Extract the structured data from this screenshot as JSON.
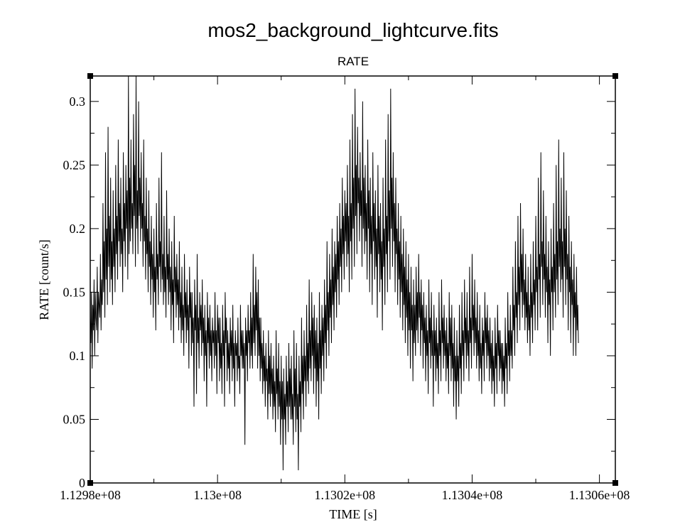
{
  "chart_data": {
    "type": "line",
    "title": "mos2_background_lightcurve.fits",
    "subtitle": "RATE",
    "xlabel": "TIME [s]",
    "ylabel": "RATE [count/s]",
    "xlim": [
      112980000,
      113062500
    ],
    "ylim": [
      0,
      0.32
    ],
    "x_ticks": [
      112980000,
      113000000,
      113020000,
      113040000,
      113060000
    ],
    "x_tick_labels": [
      "1.1298e+08",
      "1.13e+08",
      "1.1302e+08",
      "1.1304e+08",
      "1.1306e+08"
    ],
    "y_ticks": [
      0,
      0.05,
      0.1,
      0.15,
      0.2,
      0.25,
      0.3
    ],
    "y_tick_labels": [
      "0",
      "0.05",
      "0.1",
      "0.15",
      "0.2",
      "0.25",
      "0.3"
    ],
    "grid": false,
    "legend": "none",
    "line_color": "#000000",
    "series": [
      {
        "x_start": 112980000,
        "x_step": 100,
        "values": [
          0.13,
          0.11,
          0.15,
          0.09,
          0.14,
          0.12,
          0.16,
          0.1,
          0.15,
          0.13,
          0.12,
          0.17,
          0.11,
          0.15,
          0.14,
          0.13,
          0.18,
          0.12,
          0.16,
          0.14,
          0.22,
          0.15,
          0.19,
          0.13,
          0.26,
          0.16,
          0.2,
          0.14,
          0.28,
          0.17,
          0.21,
          0.15,
          0.24,
          0.16,
          0.19,
          0.14,
          0.23,
          0.17,
          0.2,
          0.15,
          0.25,
          0.18,
          0.21,
          0.16,
          0.27,
          0.19,
          0.22,
          0.17,
          0.24,
          0.18,
          0.2,
          0.15,
          0.26,
          0.19,
          0.22,
          0.17,
          0.25,
          0.2,
          0.23,
          0.16,
          0.32,
          0.18,
          0.24,
          0.19,
          0.27,
          0.2,
          0.22,
          0.18,
          0.29,
          0.21,
          0.25,
          0.17,
          0.32,
          0.2,
          0.23,
          0.18,
          0.3,
          0.21,
          0.24,
          0.19,
          0.26,
          0.2,
          0.22,
          0.17,
          0.27,
          0.19,
          0.21,
          0.16,
          0.24,
          0.18,
          0.2,
          0.15,
          0.23,
          0.17,
          0.19,
          0.14,
          0.21,
          0.16,
          0.18,
          0.13,
          0.2,
          0.15,
          0.17,
          0.12,
          0.22,
          0.16,
          0.18,
          0.14,
          0.24,
          0.17,
          0.19,
          0.15,
          0.26,
          0.16,
          0.18,
          0.14,
          0.21,
          0.15,
          0.17,
          0.13,
          0.23,
          0.16,
          0.18,
          0.14,
          0.2,
          0.15,
          0.17,
          0.12,
          0.19,
          0.14,
          0.16,
          0.11,
          0.21,
          0.15,
          0.17,
          0.13,
          0.18,
          0.14,
          0.16,
          0.12,
          0.19,
          0.13,
          0.15,
          0.11,
          0.17,
          0.12,
          0.14,
          0.1,
          0.18,
          0.13,
          0.15,
          0.11,
          0.16,
          0.12,
          0.14,
          0.09,
          0.17,
          0.13,
          0.15,
          0.1,
          0.15,
          0.11,
          0.13,
          0.06,
          0.16,
          0.12,
          0.14,
          0.07,
          0.18,
          0.11,
          0.13,
          0.09,
          0.15,
          0.12,
          0.14,
          0.1,
          0.16,
          0.11,
          0.13,
          0.08,
          0.14,
          0.1,
          0.12,
          0.06,
          0.15,
          0.11,
          0.13,
          0.09,
          0.14,
          0.1,
          0.12,
          0.08,
          0.13,
          0.11,
          0.12,
          0.09,
          0.15,
          0.1,
          0.12,
          0.07,
          0.14,
          0.11,
          0.13,
          0.08,
          0.13,
          0.09,
          0.11,
          0.07,
          0.14,
          0.1,
          0.12,
          0.06,
          0.15,
          0.11,
          0.13,
          0.08,
          0.12,
          0.09,
          0.11,
          0.07,
          0.13,
          0.1,
          0.12,
          0.08,
          0.14,
          0.09,
          0.11,
          0.06,
          0.12,
          0.1,
          0.11,
          0.08,
          0.13,
          0.09,
          0.1,
          0.07,
          0.14,
          0.1,
          0.12,
          0.09,
          0.12,
          0.09,
          0.11,
          0.03,
          0.13,
          0.1,
          0.12,
          0.08,
          0.14,
          0.11,
          0.12,
          0.09,
          0.15,
          0.1,
          0.13,
          0.09,
          0.18,
          0.11,
          0.14,
          0.1,
          0.17,
          0.12,
          0.15,
          0.09,
          0.16,
          0.1,
          0.13,
          0.08,
          0.13,
          0.09,
          0.11,
          0.07,
          0.12,
          0.08,
          0.1,
          0.06,
          0.11,
          0.08,
          0.09,
          0.05,
          0.12,
          0.07,
          0.1,
          0.06,
          0.11,
          0.07,
          0.09,
          0.05,
          0.1,
          0.06,
          0.08,
          0.04,
          0.12,
          0.07,
          0.09,
          0.05,
          0.11,
          0.06,
          0.08,
          0.03,
          0.1,
          0.05,
          0.08,
          0.01,
          0.09,
          0.05,
          0.07,
          0.03,
          0.1,
          0.06,
          0.08,
          0.04,
          0.11,
          0.06,
          0.09,
          0.05,
          0.1,
          0.05,
          0.07,
          0.03,
          0.12,
          0.06,
          0.09,
          0.04,
          0.11,
          0.05,
          0.07,
          0.01,
          0.1,
          0.06,
          0.08,
          0.04,
          0.13,
          0.07,
          0.1,
          0.05,
          0.12,
          0.08,
          0.1,
          0.06,
          0.14,
          0.08,
          0.11,
          0.07,
          0.16,
          0.09,
          0.12,
          0.08,
          0.15,
          0.1,
          0.13,
          0.07,
          0.14,
          0.09,
          0.12,
          0.06,
          0.13,
          0.08,
          0.11,
          0.05,
          0.15,
          0.09,
          0.12,
          0.07,
          0.14,
          0.1,
          0.13,
          0.08,
          0.16,
          0.11,
          0.14,
          0.09,
          0.19,
          0.12,
          0.15,
          0.1,
          0.18,
          0.13,
          0.16,
          0.11,
          0.2,
          0.14,
          0.17,
          0.12,
          0.19,
          0.15,
          0.18,
          0.13,
          0.21,
          0.16,
          0.19,
          0.14,
          0.22,
          0.17,
          0.2,
          0.15,
          0.24,
          0.18,
          0.21,
          0.16,
          0.23,
          0.19,
          0.22,
          0.17,
          0.25,
          0.18,
          0.21,
          0.15,
          0.27,
          0.19,
          0.22,
          0.16,
          0.29,
          0.2,
          0.24,
          0.17,
          0.31,
          0.21,
          0.25,
          0.18,
          0.28,
          0.22,
          0.24,
          0.19,
          0.26,
          0.21,
          0.23,
          0.17,
          0.3,
          0.2,
          0.24,
          0.18,
          0.25,
          0.19,
          0.22,
          0.16,
          0.27,
          0.2,
          0.23,
          0.15,
          0.24,
          0.18,
          0.21,
          0.14,
          0.26,
          0.19,
          0.22,
          0.16,
          0.23,
          0.17,
          0.2,
          0.13,
          0.25,
          0.18,
          0.21,
          0.15,
          0.22,
          0.16,
          0.19,
          0.12,
          0.24,
          0.17,
          0.2,
          0.14,
          0.27,
          0.18,
          0.21,
          0.15,
          0.29,
          0.19,
          0.23,
          0.16,
          0.31,
          0.2,
          0.24,
          0.17,
          0.26,
          0.19,
          0.22,
          0.15,
          0.24,
          0.18,
          0.2,
          0.14,
          0.22,
          0.16,
          0.19,
          0.13,
          0.21,
          0.15,
          0.18,
          0.12,
          0.2,
          0.14,
          0.17,
          0.11,
          0.19,
          0.13,
          0.16,
          0.1,
          0.18,
          0.12,
          0.15,
          0.09,
          0.17,
          0.12,
          0.14,
          0.08,
          0.16,
          0.11,
          0.14,
          0.1,
          0.17,
          0.12,
          0.15,
          0.11,
          0.18,
          0.13,
          0.15,
          0.1,
          0.16,
          0.12,
          0.14,
          0.09,
          0.15,
          0.11,
          0.13,
          0.08,
          0.14,
          0.1,
          0.12,
          0.07,
          0.16,
          0.11,
          0.13,
          0.09,
          0.15,
          0.1,
          0.12,
          0.06,
          0.14,
          0.1,
          0.12,
          0.08,
          0.13,
          0.09,
          0.11,
          0.07,
          0.15,
          0.1,
          0.12,
          0.08,
          0.16,
          0.11,
          0.13,
          0.09,
          0.14,
          0.1,
          0.12,
          0.08,
          0.13,
          0.09,
          0.11,
          0.07,
          0.15,
          0.1,
          0.13,
          0.08,
          0.14,
          0.09,
          0.11,
          0.06,
          0.13,
          0.08,
          0.1,
          0.05,
          0.12,
          0.08,
          0.1,
          0.06,
          0.14,
          0.09,
          0.11,
          0.07,
          0.15,
          0.1,
          0.12,
          0.08,
          0.16,
          0.11,
          0.13,
          0.09,
          0.15,
          0.1,
          0.12,
          0.08,
          0.17,
          0.11,
          0.13,
          0.09,
          0.18,
          0.12,
          0.14,
          0.1,
          0.16,
          0.11,
          0.13,
          0.09,
          0.15,
          0.1,
          0.12,
          0.08,
          0.14,
          0.09,
          0.11,
          0.07,
          0.13,
          0.1,
          0.12,
          0.08,
          0.15,
          0.11,
          0.13,
          0.09,
          0.14,
          0.1,
          0.12,
          0.08,
          0.13,
          0.09,
          0.11,
          0.07,
          0.12,
          0.08,
          0.1,
          0.06,
          0.13,
          0.09,
          0.11,
          0.07,
          0.14,
          0.1,
          0.12,
          0.08,
          0.12,
          0.09,
          0.11,
          0.07,
          0.11,
          0.08,
          0.1,
          0.06,
          0.13,
          0.09,
          0.11,
          0.07,
          0.15,
          0.1,
          0.12,
          0.08,
          0.14,
          0.1,
          0.12,
          0.09,
          0.17,
          0.12,
          0.14,
          0.1,
          0.19,
          0.13,
          0.15,
          0.11,
          0.21,
          0.14,
          0.17,
          0.12,
          0.22,
          0.15,
          0.18,
          0.13,
          0.2,
          0.14,
          0.16,
          0.12,
          0.18,
          0.13,
          0.15,
          0.11,
          0.17,
          0.12,
          0.14,
          0.1,
          0.18,
          0.13,
          0.15,
          0.11,
          0.19,
          0.14,
          0.16,
          0.12,
          0.21,
          0.15,
          0.17,
          0.12,
          0.24,
          0.16,
          0.18,
          0.13,
          0.26,
          0.17,
          0.19,
          0.14,
          0.23,
          0.16,
          0.18,
          0.13,
          0.21,
          0.15,
          0.17,
          0.11,
          0.19,
          0.14,
          0.16,
          0.1,
          0.2,
          0.15,
          0.17,
          0.12,
          0.22,
          0.15,
          0.18,
          0.13,
          0.25,
          0.16,
          0.19,
          0.14,
          0.27,
          0.17,
          0.2,
          0.15,
          0.24,
          0.16,
          0.19,
          0.13,
          0.26,
          0.17,
          0.2,
          0.14,
          0.23,
          0.16,
          0.18,
          0.12,
          0.21,
          0.15,
          0.17,
          0.11,
          0.19,
          0.14,
          0.16,
          0.1,
          0.18,
          0.13,
          0.15,
          0.1,
          0.17,
          0.12,
          0.14,
          0.11
        ]
      }
    ]
  }
}
